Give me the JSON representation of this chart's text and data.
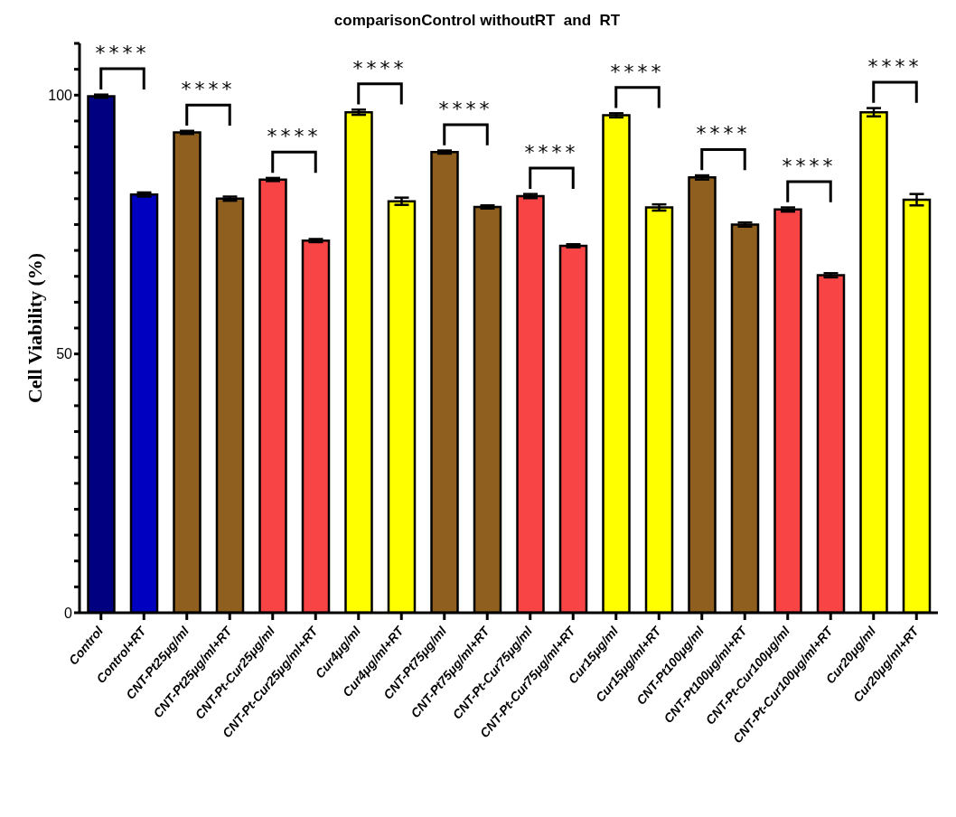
{
  "chart_data": {
    "type": "bar",
    "title": "comparisonControl withoutRT  and  RT",
    "ylabel": "Cell Viability (%)",
    "categories": [
      "Control",
      "Control+RT",
      "CNT-Pt25μg/ml",
      "CNT-Pt25μg/ml+RT",
      "CNT-Pt-Cur25μg/ml",
      "CNT-Pt-Cur25μg/ml+RT",
      "Cur4μg/ml",
      "Cur4μg/ml+RT",
      "CNT-Pt75μg/ml",
      "CNT-Pt75μg/ml+RT",
      "CNT-Pt-Cur75μg/ml",
      "CNT-Pt-Cur75μg/ml+RT",
      "Cur15μg/ml",
      "Cur15μg/ml+RT",
      "CNT-Pt100μg/ml",
      "CNT-Pt100μg/ml+RT",
      "CNT-Pt-Cur100μg/ml",
      "CNT-Pt-Cur100μg/ml+RT",
      "Cur20μg/ml",
      "Cur20μg/ml+RT"
    ],
    "values": [
      99.8,
      80.8,
      92.8,
      80.0,
      83.7,
      71.9,
      96.7,
      79.5,
      89.0,
      78.4,
      80.5,
      70.9,
      96.1,
      78.3,
      84.1,
      75.0,
      77.9,
      65.2,
      96.7,
      79.8
    ],
    "errors": [
      0.3,
      0.4,
      0.3,
      0.4,
      0.3,
      0.3,
      0.5,
      0.7,
      0.3,
      0.3,
      0.4,
      0.3,
      0.4,
      0.6,
      0.4,
      0.4,
      0.4,
      0.4,
      0.8,
      1.1
    ],
    "colors": [
      "#000080",
      "#0000c0",
      "#8f5f1f",
      "#8f5f1f",
      "#f84444",
      "#f84444",
      "#ffff00",
      "#ffff00",
      "#8f5f1f",
      "#8f5f1f",
      "#f84444",
      "#f84444",
      "#ffff00",
      "#ffff00",
      "#8f5f1f",
      "#8f5f1f",
      "#f84444",
      "#f84444",
      "#ffff00",
      "#ffff00"
    ],
    "ylim": [
      0,
      110
    ],
    "yticks": [
      0,
      {
        "value": 5,
        "label": null
      },
      {
        "value": 10,
        "label": null
      },
      {
        "value": 15,
        "label": null
      },
      {
        "value": 20,
        "label": null
      },
      {
        "value": 25,
        "label": null
      },
      {
        "value": 30,
        "label": null
      },
      {
        "value": 35,
        "label": null
      },
      {
        "value": 40,
        "label": null
      },
      {
        "value": 45,
        "label": null
      },
      50,
      {
        "value": 55,
        "label": null
      },
      {
        "value": 60,
        "label": null
      },
      {
        "value": 65,
        "label": null
      },
      {
        "value": 70,
        "label": null
      },
      {
        "value": 75,
        "label": null
      },
      {
        "value": 80,
        "label": null
      },
      {
        "value": 85,
        "label": null
      },
      {
        "value": 90,
        "label": null
      },
      {
        "value": 95,
        "label": null
      },
      100,
      {
        "value": 105,
        "label": null
      },
      {
        "value": 110,
        "label": null
      }
    ],
    "annotations": [
      "****",
      "****",
      "****",
      "****",
      "****",
      "****",
      "****",
      "****",
      "****",
      "****"
    ]
  }
}
